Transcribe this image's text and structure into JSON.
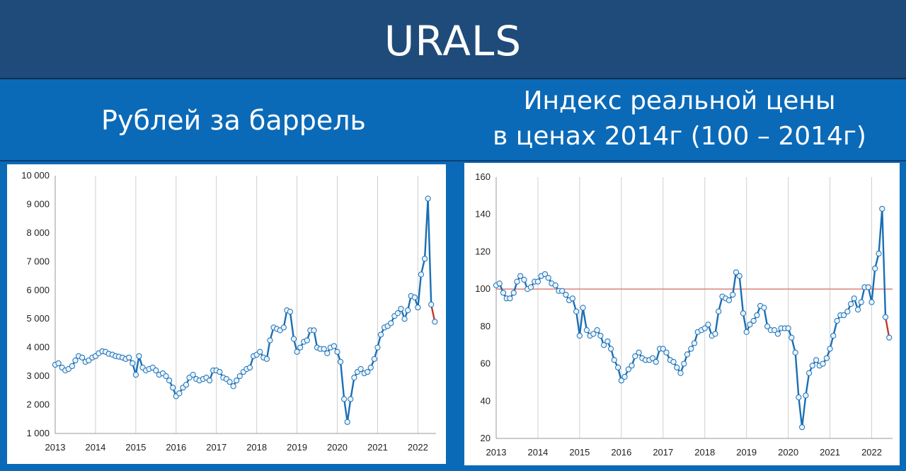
{
  "header": {
    "title": "URALS"
  },
  "left_heading": {
    "text": "Рублей за баррель"
  },
  "right_heading": {
    "line1": "Индекс реальной цены",
    "line2": "в ценах 2014г (100 – 2014г)"
  },
  "colors": {
    "line": "#1a6fb5",
    "marker_fill": "#e9f3fb",
    "last_segment": "#c0392b",
    "reference": "#d9827a",
    "grid": "#cfcfcf"
  },
  "chart_data": [
    {
      "type": "line",
      "title": "",
      "x_unit": "year",
      "xlim": [
        2013,
        2022.45
      ],
      "ylim": [
        1000,
        10000
      ],
      "y_ticks": [
        1000,
        2000,
        3000,
        4000,
        5000,
        6000,
        7000,
        8000,
        9000,
        10000
      ],
      "y_tick_labels": [
        "1 000",
        "2 000",
        "3 000",
        "4 000",
        "5 000",
        "6 000",
        "7 000",
        "8 000",
        "9 000",
        "10 000"
      ],
      "x_ticks": [
        2013,
        2014,
        2015,
        2016,
        2017,
        2018,
        2019,
        2020,
        2021,
        2022
      ],
      "x_tick_labels": [
        "2013",
        "2014",
        "2015",
        "2016",
        "2017",
        "2018",
        "2019",
        "2020",
        "2021",
        "2022"
      ],
      "grid": "vertical",
      "series": [
        {
          "x": [
            2013.0,
            2013.08,
            2013.17,
            2013.25,
            2013.33,
            2013.42,
            2013.5,
            2013.58,
            2013.67,
            2013.75,
            2013.83,
            2013.92,
            2014.0,
            2014.08,
            2014.17,
            2014.25,
            2014.33,
            2014.42,
            2014.5,
            2014.58,
            2014.67,
            2014.75,
            2014.83,
            2014.92,
            2015.0,
            2015.08,
            2015.17,
            2015.25,
            2015.33,
            2015.42,
            2015.5,
            2015.58,
            2015.67,
            2015.75,
            2015.83,
            2015.92,
            2016.0,
            2016.08,
            2016.17,
            2016.25,
            2016.33,
            2016.42,
            2016.5,
            2016.58,
            2016.67,
            2016.75,
            2016.83,
            2016.92,
            2017.0,
            2017.08,
            2017.17,
            2017.25,
            2017.33,
            2017.42,
            2017.5,
            2017.58,
            2017.67,
            2017.75,
            2017.83,
            2017.92,
            2018.0,
            2018.08,
            2018.17,
            2018.25,
            2018.33,
            2018.42,
            2018.5,
            2018.58,
            2018.67,
            2018.75,
            2018.83,
            2018.92,
            2019.0,
            2019.08,
            2019.17,
            2019.25,
            2019.33,
            2019.42,
            2019.5,
            2019.58,
            2019.67,
            2019.75,
            2019.83,
            2019.92,
            2020.0,
            2020.08,
            2020.17,
            2020.25,
            2020.33,
            2020.42,
            2020.5,
            2020.58,
            2020.67,
            2020.75,
            2020.83,
            2020.92,
            2021.0,
            2021.08,
            2021.17,
            2021.25,
            2021.33,
            2021.42,
            2021.5,
            2021.58,
            2021.67,
            2021.75,
            2021.83,
            2021.92,
            2022.0,
            2022.08,
            2022.17,
            2022.25,
            2022.33
          ],
          "y": [
            3400,
            3450,
            3300,
            3200,
            3250,
            3350,
            3550,
            3700,
            3650,
            3500,
            3550,
            3650,
            3700,
            3800,
            3870,
            3850,
            3780,
            3750,
            3700,
            3680,
            3650,
            3600,
            3650,
            3450,
            3050,
            3700,
            3300,
            3200,
            3250,
            3300,
            3200,
            3050,
            3100,
            3000,
            2850,
            2600,
            2300,
            2400,
            2600,
            2700,
            2950,
            3050,
            2900,
            2850,
            2900,
            2950,
            2850,
            3200,
            3200,
            3150,
            2950,
            2900,
            2800,
            2650,
            2850,
            3000,
            3150,
            3250,
            3300,
            3700,
            3750,
            3850,
            3650,
            3600,
            4250,
            4700,
            4650,
            4600,
            4700,
            5300,
            5250,
            4300,
            3850,
            4000,
            4200,
            4250,
            4600,
            4600,
            4000,
            3950,
            3950,
            3800,
            4000,
            4050,
            3850,
            3500,
            2200,
            1400,
            2200,
            2950,
            3150,
            3250,
            3100,
            3150,
            3300,
            3600,
            4000,
            4450,
            4700,
            4750,
            4850,
            5100,
            5200,
            5350,
            5000,
            5300,
            5800,
            5750,
            5400,
            6550,
            7100,
            9200,
            5500
          ],
          "last_point": [
            2022.42,
            4900
          ]
        }
      ]
    },
    {
      "type": "line",
      "title": "",
      "x_unit": "year",
      "xlim": [
        2013,
        2022.5
      ],
      "ylim": [
        20,
        160
      ],
      "y_ticks": [
        20,
        40,
        60,
        80,
        100,
        120,
        140,
        160
      ],
      "y_tick_labels": [
        "20",
        "40",
        "60",
        "80",
        "100",
        "120",
        "140",
        "160"
      ],
      "x_ticks": [
        2013,
        2014,
        2015,
        2016,
        2017,
        2018,
        2019,
        2020,
        2021,
        2022
      ],
      "x_tick_labels": [
        "2013",
        "2014",
        "2015",
        "2016",
        "2017",
        "2018",
        "2019",
        "2020",
        "2021",
        "2022"
      ],
      "grid": "vertical",
      "reference_line": 100,
      "series": [
        {
          "x": [
            2013.0,
            2013.08,
            2013.17,
            2013.25,
            2013.33,
            2013.42,
            2013.5,
            2013.58,
            2013.67,
            2013.75,
            2013.83,
            2013.92,
            2014.0,
            2014.08,
            2014.17,
            2014.25,
            2014.33,
            2014.42,
            2014.5,
            2014.58,
            2014.67,
            2014.75,
            2014.83,
            2014.92,
            2015.0,
            2015.08,
            2015.17,
            2015.25,
            2015.33,
            2015.42,
            2015.5,
            2015.58,
            2015.67,
            2015.75,
            2015.83,
            2015.92,
            2016.0,
            2016.08,
            2016.17,
            2016.25,
            2016.33,
            2016.42,
            2016.5,
            2016.58,
            2016.67,
            2016.75,
            2016.83,
            2016.92,
            2017.0,
            2017.08,
            2017.17,
            2017.25,
            2017.33,
            2017.42,
            2017.5,
            2017.58,
            2017.67,
            2017.75,
            2017.83,
            2017.92,
            2018.0,
            2018.08,
            2018.17,
            2018.25,
            2018.33,
            2018.42,
            2018.5,
            2018.58,
            2018.67,
            2018.75,
            2018.83,
            2018.92,
            2019.0,
            2019.08,
            2019.17,
            2019.25,
            2019.33,
            2019.42,
            2019.5,
            2019.58,
            2019.67,
            2019.75,
            2019.83,
            2019.92,
            2020.0,
            2020.08,
            2020.17,
            2020.25,
            2020.33,
            2020.42,
            2020.5,
            2020.58,
            2020.67,
            2020.75,
            2020.83,
            2020.92,
            2021.0,
            2021.08,
            2021.17,
            2021.25,
            2021.33,
            2021.42,
            2021.5,
            2021.58,
            2021.67,
            2021.75,
            2021.83,
            2021.92,
            2022.0,
            2022.08,
            2022.17,
            2022.25,
            2022.33
          ],
          "y": [
            102,
            103,
            98,
            95,
            95,
            98,
            104,
            107,
            105,
            100,
            101,
            104,
            104,
            107,
            108,
            106,
            103,
            102,
            99,
            99,
            97,
            94,
            95,
            88,
            75,
            90,
            78,
            75,
            76,
            78,
            75,
            70,
            72,
            68,
            62,
            58,
            51,
            53,
            57,
            59,
            64,
            66,
            63,
            62,
            62,
            63,
            61,
            68,
            68,
            66,
            62,
            61,
            58,
            55,
            60,
            65,
            68,
            71,
            77,
            78,
            79,
            81,
            75,
            76,
            88,
            96,
            95,
            94,
            97,
            109,
            107,
            87,
            77,
            81,
            83,
            86,
            91,
            90,
            80,
            78,
            78,
            76,
            79,
            79,
            79,
            74,
            66,
            42,
            26,
            43,
            55,
            59,
            62,
            59,
            60,
            63,
            68,
            75,
            83,
            86,
            86,
            88,
            92,
            95,
            89,
            93,
            101,
            101,
            93,
            111,
            119,
            143,
            85
          ],
          "last_point": [
            2022.42,
            74
          ]
        }
      ]
    }
  ]
}
